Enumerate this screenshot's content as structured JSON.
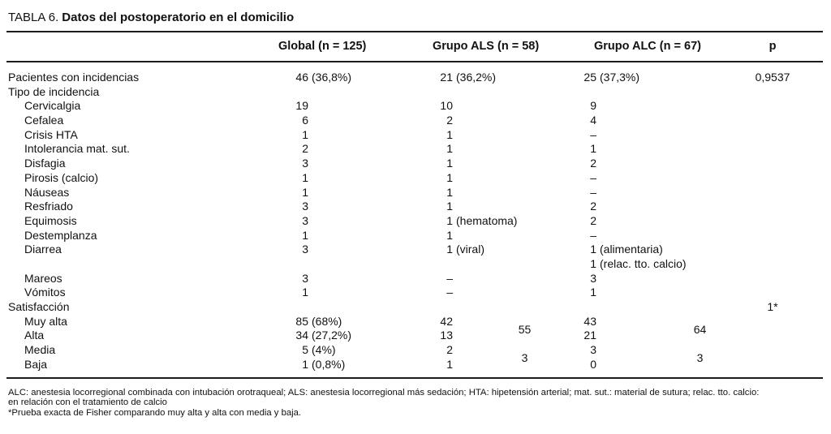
{
  "title": {
    "prefix": "TABLA 6.",
    "bold": "Datos del postoperatorio en el domicilio"
  },
  "columns": [
    "Global (n = 125)",
    "Grupo ALS (n = 58)",
    "Grupo ALC (n = 67)",
    "p"
  ],
  "rows": [
    {
      "label": "Pacientes con incidencias",
      "indent": 0,
      "global": "46 (36,8%)",
      "als": "21 (36,2%)",
      "alc": "25 (37,3%)",
      "p": "0,9537"
    },
    {
      "label": "Tipo de incidencia",
      "indent": 0
    },
    {
      "label": "Cervicalgia",
      "indent": 1,
      "global": "19",
      "als": "10",
      "alc": "9"
    },
    {
      "label": "Cefalea",
      "indent": 1,
      "global": "6",
      "als": "2",
      "alc": "4"
    },
    {
      "label": "Crisis HTA",
      "indent": 1,
      "global": "1",
      "als": "1",
      "alc": "–"
    },
    {
      "label": "Intolerancia mat. sut.",
      "indent": 1,
      "global": "2",
      "als": "1",
      "alc": "1"
    },
    {
      "label": "Disfagia",
      "indent": 1,
      "global": "3",
      "als": "1",
      "alc": "2"
    },
    {
      "label": "Pirosis (calcio)",
      "indent": 1,
      "global": "1",
      "als": "1",
      "alc": "–"
    },
    {
      "label": "Náuseas",
      "indent": 1,
      "global": "1",
      "als": "1",
      "alc": "–"
    },
    {
      "label": "Resfriado",
      "indent": 1,
      "global": "3",
      "als": "1",
      "alc": "2"
    },
    {
      "label": "Equimosis",
      "indent": 1,
      "global": "3",
      "als": "1 (hematoma)",
      "alc": "2"
    },
    {
      "label": "Destemplanza",
      "indent": 1,
      "global": "1",
      "als": "1",
      "alc": "–"
    },
    {
      "label": "Diarrea",
      "indent": 1,
      "global": "3",
      "als": "1 (viral)",
      "alc": "1 (alimentaria)"
    },
    {
      "label": "",
      "indent": 1,
      "alc": "1 (relac. tto. calcio)"
    },
    {
      "label": "Mareos",
      "indent": 1,
      "global": "3",
      "als": "–",
      "alc": "3"
    },
    {
      "label": "Vómitos",
      "indent": 1,
      "global": "1",
      "als": "–",
      "alc": "1"
    },
    {
      "label": "Satisfacción",
      "indent": 0,
      "p": "1*"
    },
    {
      "label": "Muy alta",
      "indent": 1,
      "global": "85 (68%)",
      "als": "42",
      "alc": "43"
    },
    {
      "label": "Alta",
      "indent": 1,
      "global": "34 (27,2%)",
      "als": "13",
      "alc": "21"
    },
    {
      "label": "Media",
      "indent": 1,
      "global": "5 (4%)",
      "als": "2",
      "alc": "3"
    },
    {
      "label": "Baja",
      "indent": 1,
      "global": "1 (0,8%)",
      "als": "1",
      "alc": "0"
    }
  ],
  "merged": {
    "als_high": "55",
    "als_low": "3",
    "alc_high": "64",
    "alc_low": "3"
  },
  "footnotes": [
    "ALC: anestesia locorregional combinada con intubación orotraqueal; ALS: anestesia locorregional más sedación; HTA: hipetensión arterial; mat. sut.: material de sutura; relac. tto. calcio:",
    "en relación con el tratamiento de calcio",
    "*Prueba exacta de Fisher comparando muy alta y alta con media y baja."
  ]
}
